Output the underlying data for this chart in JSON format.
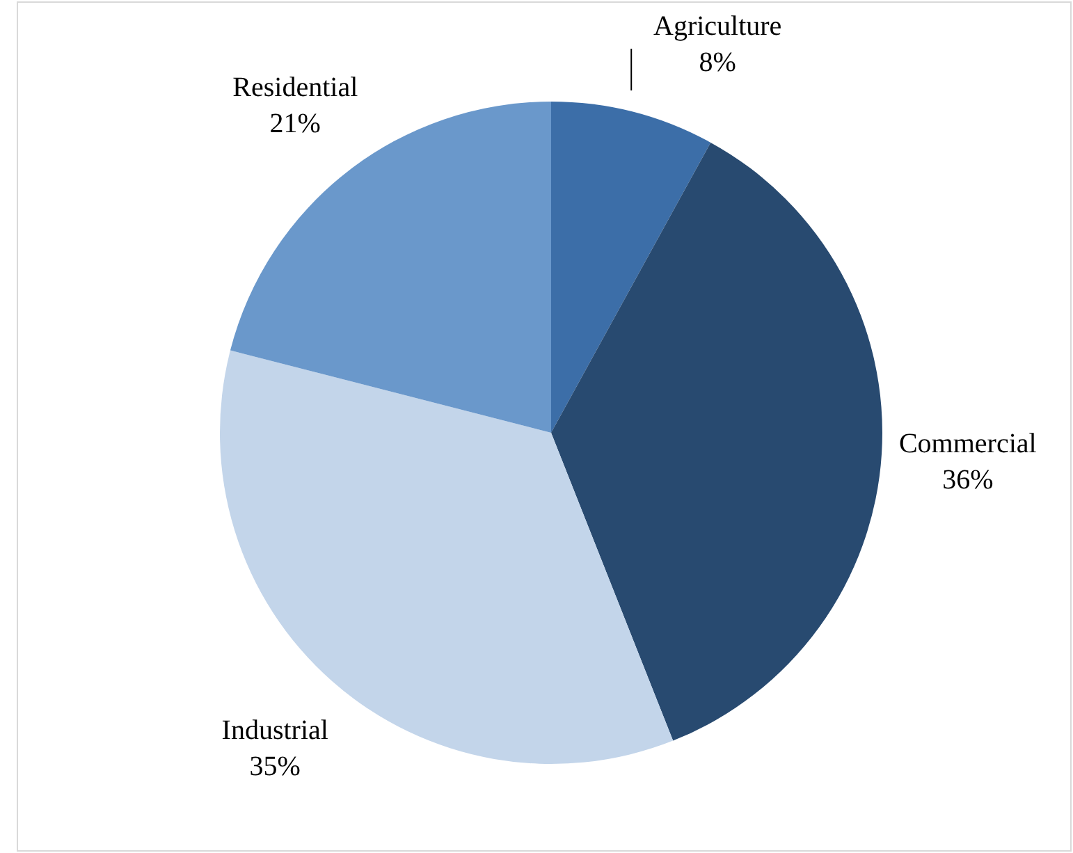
{
  "chart_data": {
    "type": "pie",
    "categories": [
      "Agriculture",
      "Commercial",
      "Industrial",
      "Residential"
    ],
    "values": [
      8,
      36,
      35,
      21
    ],
    "colors": [
      "#3c6ea8",
      "#284a70",
      "#c3d5ea",
      "#6a98cb"
    ],
    "value_labels": [
      "8%",
      "36%",
      "35%",
      "21%"
    ],
    "legend": false
  }
}
